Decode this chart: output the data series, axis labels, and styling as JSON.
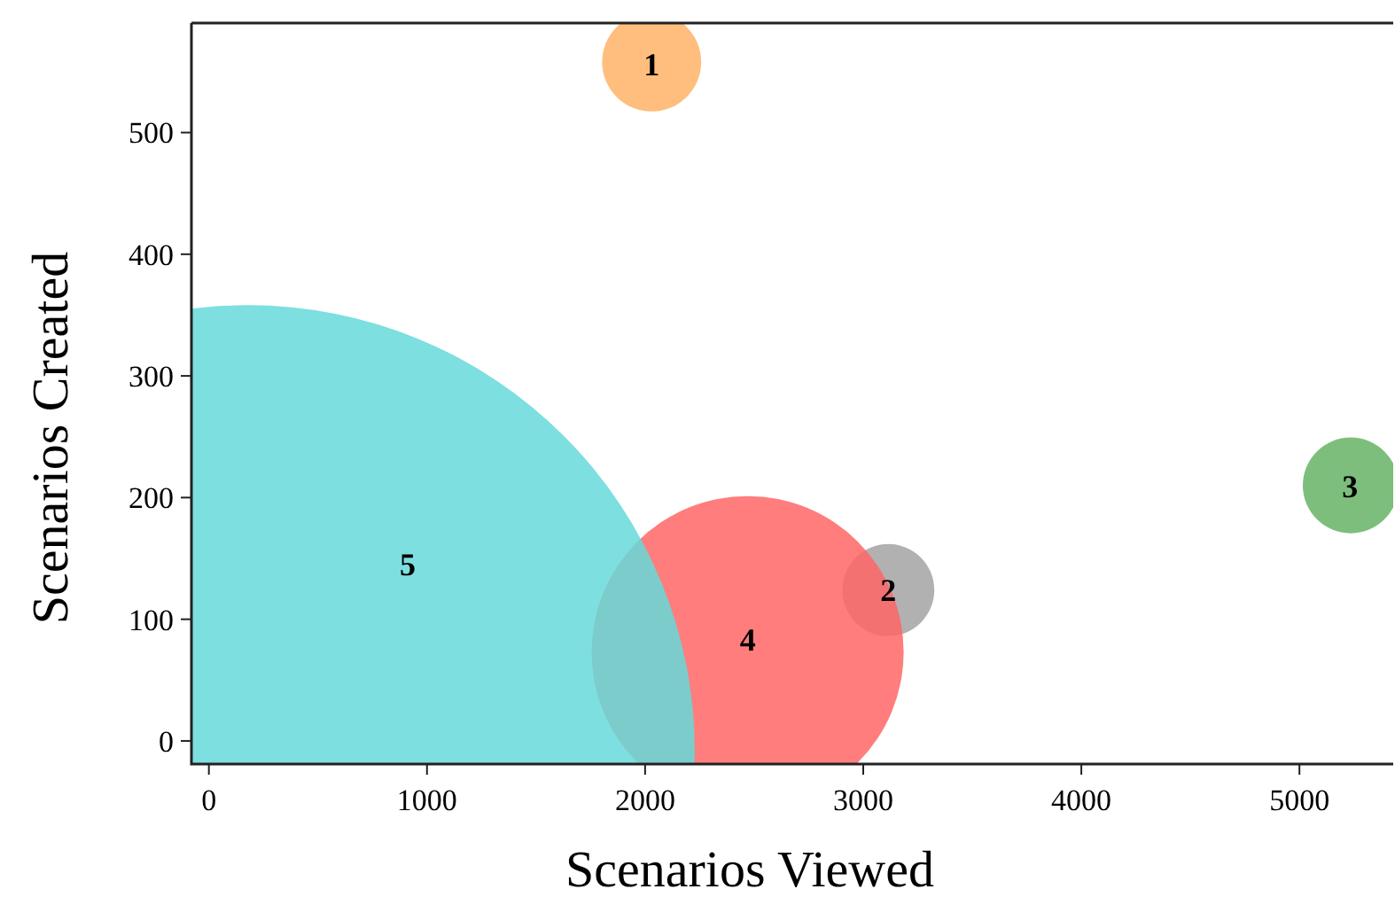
{
  "chart_data": {
    "type": "bubble",
    "xlabel": "Scenarios Viewed",
    "ylabel": "Scenarios Created",
    "series": [
      {
        "name": "1",
        "color": "#ffb366",
        "x": [
          2030
        ],
        "values": [
          558
        ],
        "sizes": [
          0.0123
        ]
      },
      {
        "name": "2",
        "color": "#a3a3a3",
        "x": [
          3115
        ],
        "values": [
          124
        ],
        "sizes": [
          0.0106
        ]
      },
      {
        "name": "3",
        "color": "#66b366",
        "x": [
          5235
        ],
        "values": [
          210
        ],
        "sizes": [
          0.0115
        ]
      },
      {
        "name": "4",
        "color": "#ff6666",
        "x": [
          2470
        ],
        "values": [
          73
        ],
        "sizes": [
          0.122
        ]
      },
      {
        "name": "5",
        "color": "#66d9d9",
        "x": [
          180
        ],
        "values": [
          -9
        ],
        "sizes": [
          1
        ]
      }
    ],
    "xlim": [
      -80,
      5430
    ],
    "ylim": [
      -19,
      590
    ],
    "xticks": [
      0,
      1000,
      2000,
      3000,
      4000,
      5000
    ],
    "yticks": [
      0,
      100,
      200,
      300,
      400,
      500
    ]
  }
}
